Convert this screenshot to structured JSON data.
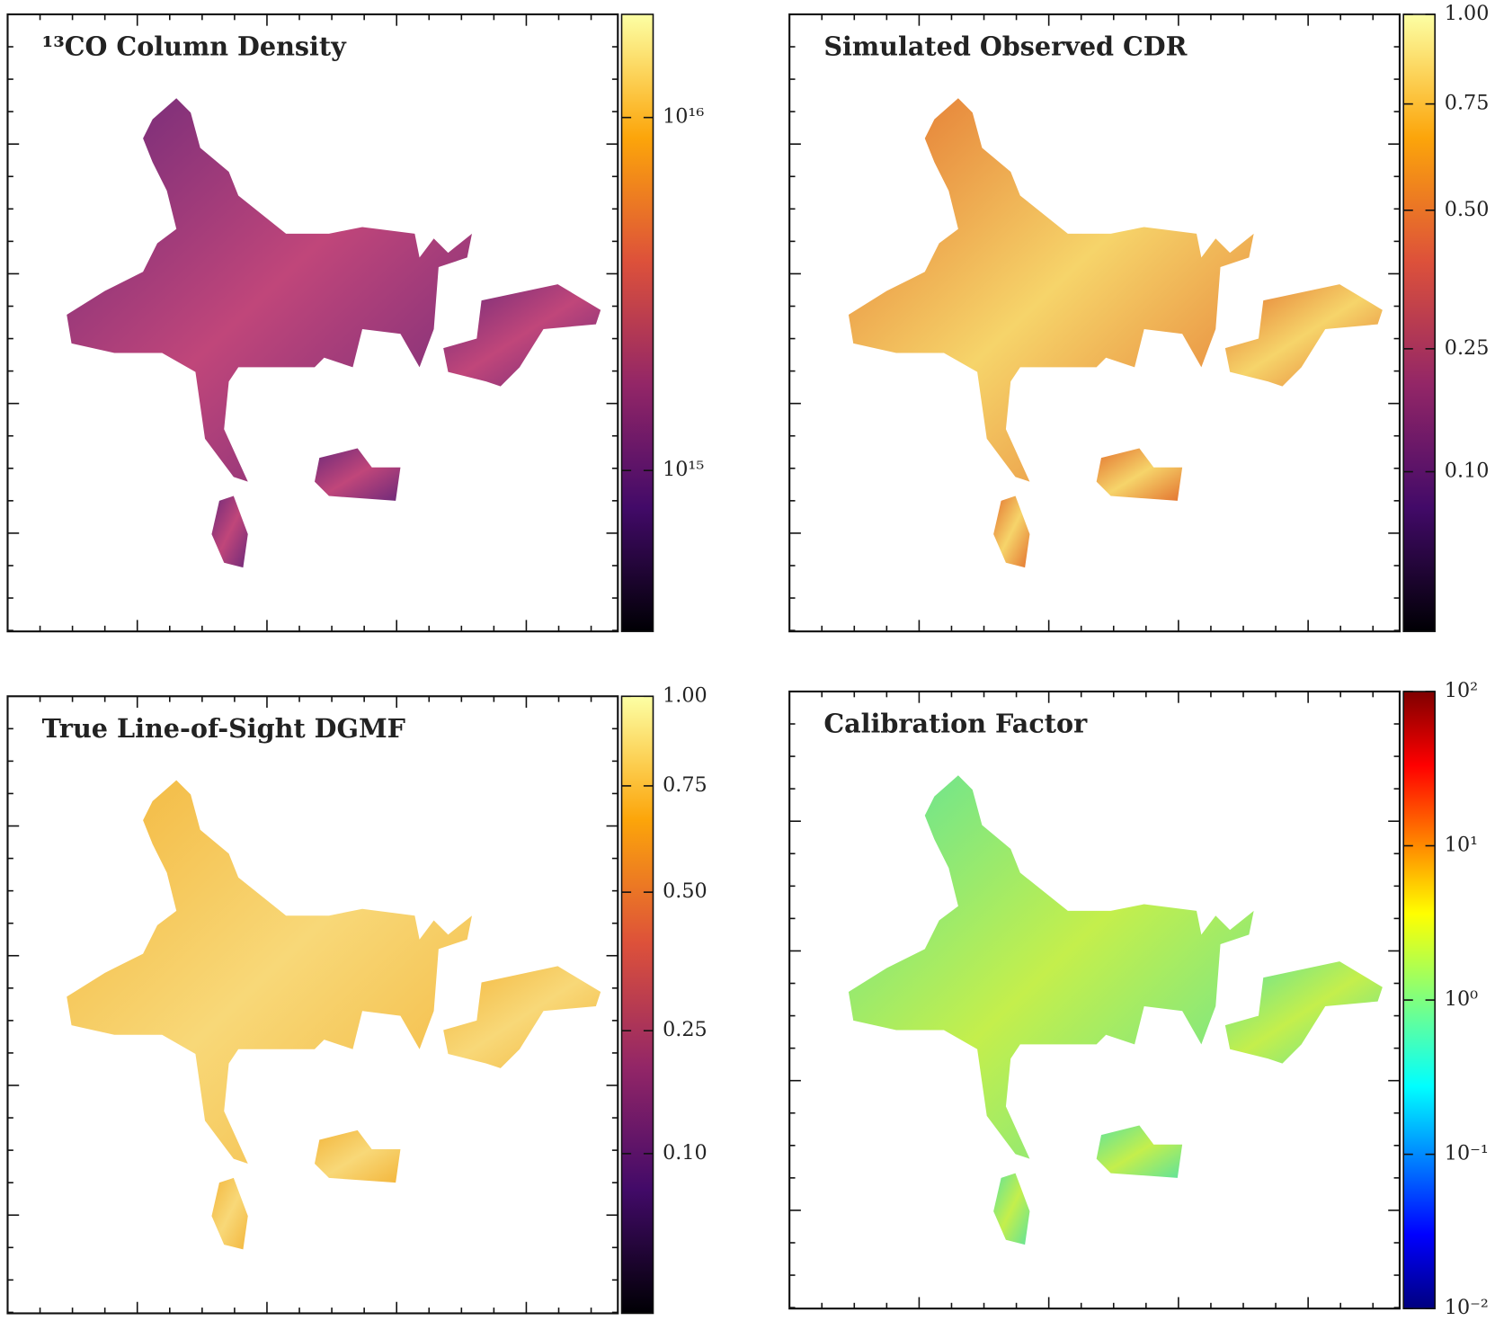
{
  "chart_data": [
    {
      "type": "heatmap",
      "title": "¹³CO Column Density",
      "colormap": "inferno",
      "scale": "log",
      "ylim": [
        350000000000000.0,
        1.96e+16
      ],
      "yticks": [
        {
          "value": 1000000000000000.0,
          "label": "10¹⁵"
        },
        {
          "value": 1e+16,
          "label": "10¹⁶"
        }
      ]
    },
    {
      "type": "heatmap",
      "title": "Simulated Observed CDR",
      "colormap": "inferno",
      "scale": "sqrt",
      "ylim": [
        0.006,
        1
      ],
      "yticks": [
        {
          "value": 0.1,
          "label": "0.10"
        },
        0.25,
        {
          "value": 0.5,
          "label": "0.50"
        },
        0.75,
        {
          "value": 1,
          "label": "1.00"
        }
      ]
    },
    {
      "type": "heatmap",
      "title": "True Line-of-Sight DGMF",
      "colormap": "inferno",
      "scale": "sqrt",
      "ylim": [
        0.006,
        1
      ],
      "yticks": [
        {
          "value": 0.1,
          "label": "0.10"
        },
        0.25,
        {
          "value": 0.5,
          "label": "0.50"
        },
        0.75,
        {
          "value": 1,
          "label": "1.00"
        }
      ]
    },
    {
      "type": "heatmap",
      "title": "Calibration Factor",
      "colormap": "jet",
      "scale": "log",
      "ylim": [
        0.01,
        100
      ],
      "yticks": [
        {
          "value": 0.01,
          "label": "10⁻²"
        },
        {
          "value": 0.1,
          "label": "10⁻¹"
        },
        {
          "value": 1,
          "label": "10⁰"
        },
        {
          "value": 10,
          "label": "10¹"
        },
        {
          "value": 100,
          "label": "10²"
        }
      ]
    }
  ]
}
